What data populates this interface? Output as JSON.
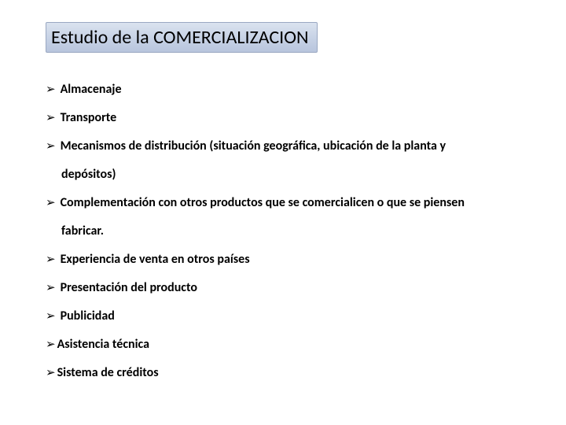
{
  "title": "Estudio de la COMERCIALIZACION",
  "title_box": {
    "gradient_top": "#dbe3ef",
    "gradient_mid": "#c8d3e6",
    "gradient_bottom": "#b8c5dd",
    "border_color": "#9aa8c2",
    "font_size_pt": 18
  },
  "bullet_glyph": "➢",
  "bullet_color": "#000000",
  "items": [
    {
      "text": "Almacenaje",
      "spaced": true,
      "cont": null
    },
    {
      "text": "Transporte",
      "spaced": true,
      "cont": null
    },
    {
      "text": "Mecanismos de distribución (situación geográfica, ubicación de la planta y",
      "spaced": true,
      "cont": "depósitos)"
    },
    {
      "text": "Complementación con otros productos que se comercialicen o que se piensen",
      "spaced": true,
      "cont": "fabricar."
    },
    {
      "text": "Experiencia de venta en otros países",
      "spaced": true,
      "cont": null
    },
    {
      "text": "Presentación del producto",
      "spaced": true,
      "cont": null
    },
    {
      "text": "Publicidad",
      "spaced": true,
      "cont": null
    },
    {
      "text": "Asistencia técnica",
      "spaced": false,
      "cont": null
    },
    {
      "text": "Sistema de créditos",
      "spaced": false,
      "cont": null
    }
  ],
  "typography": {
    "item_font_size_pt": 12,
    "item_font_weight": "bold",
    "title_font_weight": "normal",
    "font_family": "Calibri"
  },
  "background_color": "#ffffff",
  "text_color": "#000000"
}
